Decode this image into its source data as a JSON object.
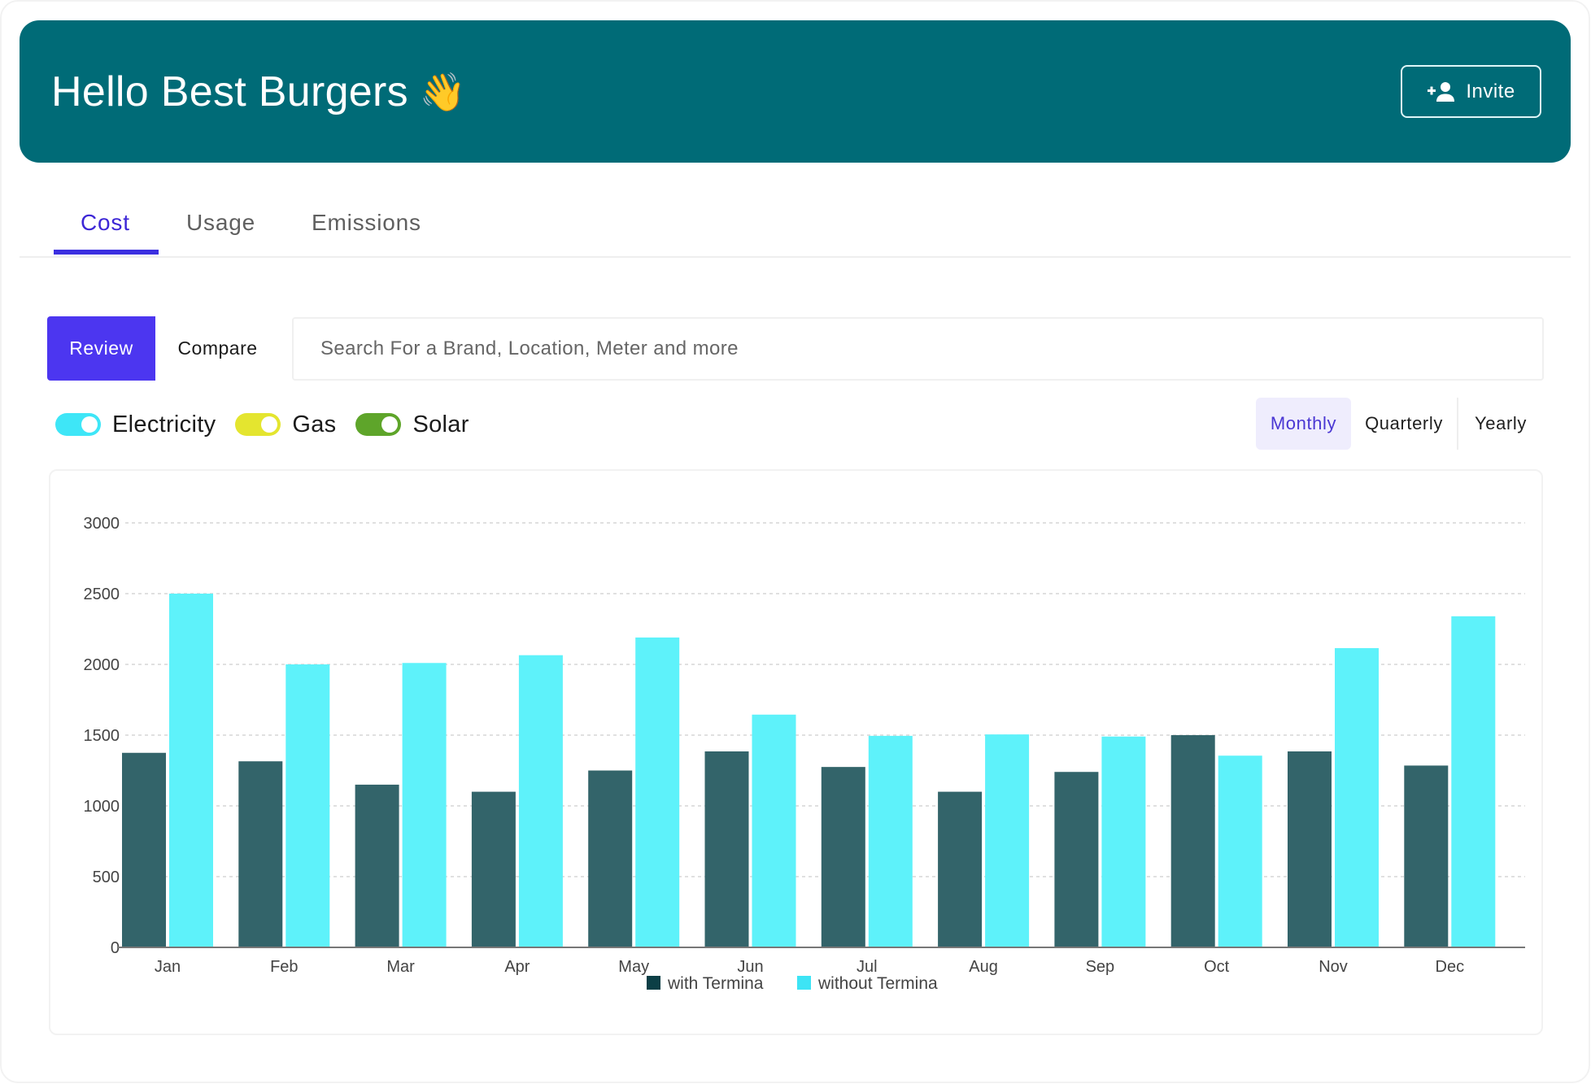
{
  "header": {
    "title": "Hello Best Burgers",
    "wave_emoji": "👋",
    "invite_label": "Invite",
    "invite_icon": "person-add-icon",
    "bg_color": "#006b77"
  },
  "tabs": [
    {
      "label": "Cost",
      "active": true
    },
    {
      "label": "Usage",
      "active": false
    },
    {
      "label": "Emissions",
      "active": false
    }
  ],
  "mode": {
    "review_label": "Review",
    "compare_label": "Compare",
    "active": "Review"
  },
  "search": {
    "placeholder": "Search For a Brand, Location, Meter and more",
    "value": ""
  },
  "toggles": [
    {
      "label": "Electricity",
      "on": true,
      "color": "#3ee6f7"
    },
    {
      "label": "Gas",
      "on": true,
      "color": "#e4e52f"
    },
    {
      "label": "Solar",
      "on": true,
      "color": "#5ea52a"
    }
  ],
  "period": {
    "options": [
      "Monthly",
      "Quarterly",
      "Yearly"
    ],
    "selected": "Monthly"
  },
  "chart_data": {
    "type": "bar",
    "title": "",
    "xlabel": "",
    "ylabel": "",
    "categories": [
      "Jan",
      "Feb",
      "Mar",
      "Apr",
      "May",
      "Jun",
      "Jul",
      "Aug",
      "Sep",
      "Oct",
      "Nov",
      "Dec"
    ],
    "series": [
      {
        "name": "with Termina",
        "color": "#33646a",
        "legend_color": "#0c3f46",
        "values": [
          1375,
          1315,
          1150,
          1100,
          1250,
          1385,
          1275,
          1100,
          1240,
          1500,
          1385,
          1285
        ]
      },
      {
        "name": "without Termina",
        "color": "#5ef2fa",
        "legend_color": "#3de4f5",
        "values": [
          2500,
          2000,
          2010,
          2065,
          2190,
          1645,
          1495,
          1505,
          1490,
          1355,
          2115,
          2340
        ]
      }
    ],
    "yticks": [
      0,
      500,
      1000,
      1500,
      2000,
      2500,
      3000
    ],
    "ylim": [
      0,
      3000
    ],
    "grid": true,
    "legend_position": "bottom"
  }
}
